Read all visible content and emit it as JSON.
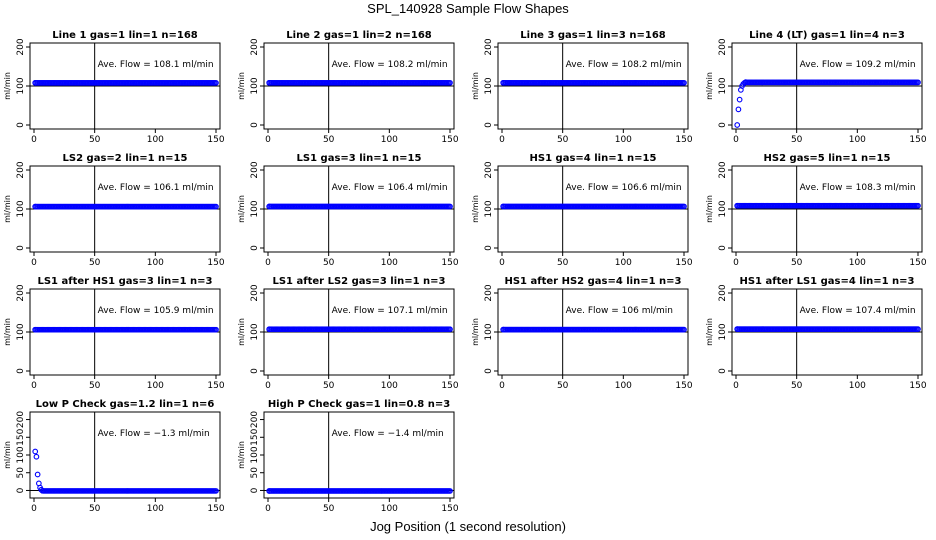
{
  "page": {
    "title": "SPL_140928  Sample Flow Shapes",
    "xlabel": "Jog Position (1 second resolution)"
  },
  "chart_data": [
    {
      "type": "scatter",
      "title": "Line 1 gas=1 lin=1 n=168",
      "ylabel": "ml/min",
      "annotation": "Ave. Flow = 108.1  ml/min",
      "xlim": [
        0,
        150
      ],
      "ylim": [
        0,
        200
      ],
      "xticks": [
        0,
        50,
        100,
        150
      ],
      "yticks": [
        0,
        100,
        200
      ],
      "vline": 50,
      "hline": 100,
      "series": [
        {
          "x": [
            1,
            150
          ],
          "y": [
            108.1,
            108.1
          ]
        }
      ],
      "marker_color": "#0000ff"
    },
    {
      "type": "scatter",
      "title": "Line 2 gas=1 lin=2 n=168",
      "ylabel": "ml/min",
      "annotation": "Ave. Flow = 108.2  ml/min",
      "xlim": [
        0,
        150
      ],
      "ylim": [
        0,
        200
      ],
      "xticks": [
        0,
        50,
        100,
        150
      ],
      "yticks": [
        0,
        100,
        200
      ],
      "vline": 50,
      "hline": 100,
      "series": [
        {
          "x": [
            1,
            150
          ],
          "y": [
            108.2,
            108.2
          ]
        }
      ],
      "marker_color": "#0000ff"
    },
    {
      "type": "scatter",
      "title": "Line 3 gas=1 lin=3 n=168",
      "ylabel": "ml/min",
      "annotation": "Ave. Flow = 108.2  ml/min",
      "xlim": [
        0,
        150
      ],
      "ylim": [
        0,
        200
      ],
      "xticks": [
        0,
        50,
        100,
        150
      ],
      "yticks": [
        0,
        100,
        200
      ],
      "vline": 50,
      "hline": 100,
      "series": [
        {
          "x": [
            1,
            150
          ],
          "y": [
            108.2,
            108.2
          ]
        }
      ],
      "marker_color": "#0000ff"
    },
    {
      "type": "scatter",
      "title": "Line 4 (LT) gas=1 lin=4 n=3",
      "ylabel": "ml/min",
      "annotation": "Ave. Flow = 109.2  ml/min",
      "xlim": [
        0,
        150
      ],
      "ylim": [
        0,
        200
      ],
      "xticks": [
        0,
        50,
        100,
        150
      ],
      "yticks": [
        0,
        100,
        200
      ],
      "vline": 50,
      "hline": 100,
      "series": [
        {
          "x": [
            1,
            2,
            3,
            4,
            5,
            6,
            7,
            8,
            150
          ],
          "y": [
            0,
            40,
            65,
            90,
            100,
            105,
            108,
            110,
            109.2
          ]
        }
      ],
      "marker_color": "#0000ff"
    },
    {
      "type": "scatter",
      "title": "LS2 gas=2 lin=1 n=15",
      "ylabel": "ml/min",
      "annotation": "Ave. Flow = 106.1  ml/min",
      "xlim": [
        0,
        150
      ],
      "ylim": [
        0,
        200
      ],
      "xticks": [
        0,
        50,
        100,
        150
      ],
      "yticks": [
        0,
        100,
        200
      ],
      "vline": 50,
      "hline": 100,
      "series": [
        {
          "x": [
            1,
            150
          ],
          "y": [
            106.1,
            106.1
          ]
        }
      ],
      "marker_color": "#0000ff"
    },
    {
      "type": "scatter",
      "title": "LS1 gas=3 lin=1 n=15",
      "ylabel": "ml/min",
      "annotation": "Ave. Flow = 106.4  ml/min",
      "xlim": [
        0,
        150
      ],
      "ylim": [
        0,
        200
      ],
      "xticks": [
        0,
        50,
        100,
        150
      ],
      "yticks": [
        0,
        100,
        200
      ],
      "vline": 50,
      "hline": 100,
      "series": [
        {
          "x": [
            1,
            150
          ],
          "y": [
            106.4,
            106.4
          ]
        }
      ],
      "marker_color": "#0000ff"
    },
    {
      "type": "scatter",
      "title": "HS1 gas=4 lin=1 n=15",
      "ylabel": "ml/min",
      "annotation": "Ave. Flow = 106.6  ml/min",
      "xlim": [
        0,
        150
      ],
      "ylim": [
        0,
        200
      ],
      "xticks": [
        0,
        50,
        100,
        150
      ],
      "yticks": [
        0,
        100,
        200
      ],
      "vline": 50,
      "hline": 100,
      "series": [
        {
          "x": [
            1,
            150
          ],
          "y": [
            106.6,
            106.6
          ]
        }
      ],
      "marker_color": "#0000ff"
    },
    {
      "type": "scatter",
      "title": "HS2 gas=5 lin=1 n=15",
      "ylabel": "ml/min",
      "annotation": "Ave. Flow = 108.3  ml/min",
      "xlim": [
        0,
        150
      ],
      "ylim": [
        0,
        200
      ],
      "xticks": [
        0,
        50,
        100,
        150
      ],
      "yticks": [
        0,
        100,
        200
      ],
      "vline": 50,
      "hline": 100,
      "series": [
        {
          "x": [
            1,
            150
          ],
          "y": [
            108.3,
            108.3
          ]
        }
      ],
      "marker_color": "#0000ff"
    },
    {
      "type": "scatter",
      "title": "LS1 after HS1 gas=3 lin=1 n=3",
      "ylabel": "ml/min",
      "annotation": "Ave. Flow = 105.9  ml/min",
      "xlim": [
        0,
        150
      ],
      "ylim": [
        0,
        200
      ],
      "xticks": [
        0,
        50,
        100,
        150
      ],
      "yticks": [
        0,
        100,
        200
      ],
      "vline": 50,
      "hline": 100,
      "series": [
        {
          "x": [
            1,
            150
          ],
          "y": [
            105.9,
            105.9
          ]
        }
      ],
      "marker_color": "#0000ff"
    },
    {
      "type": "scatter",
      "title": "LS1 after LS2 gas=3 lin=1 n=3",
      "ylabel": "ml/min",
      "annotation": "Ave. Flow = 107.1  ml/min",
      "xlim": [
        0,
        150
      ],
      "ylim": [
        0,
        200
      ],
      "xticks": [
        0,
        50,
        100,
        150
      ],
      "yticks": [
        0,
        100,
        200
      ],
      "vline": 50,
      "hline": 100,
      "series": [
        {
          "x": [
            1,
            150
          ],
          "y": [
            107.1,
            107.1
          ]
        }
      ],
      "marker_color": "#0000ff"
    },
    {
      "type": "scatter",
      "title": "HS1 after HS2 gas=4 lin=1 n=3",
      "ylabel": "ml/min",
      "annotation": "Ave. Flow = 106  ml/min",
      "xlim": [
        0,
        150
      ],
      "ylim": [
        0,
        200
      ],
      "xticks": [
        0,
        50,
        100,
        150
      ],
      "yticks": [
        0,
        100,
        200
      ],
      "vline": 50,
      "hline": 100,
      "series": [
        {
          "x": [
            1,
            150
          ],
          "y": [
            106,
            106
          ]
        }
      ],
      "marker_color": "#0000ff"
    },
    {
      "type": "scatter",
      "title": "HS1 after LS1 gas=4 lin=1 n=3",
      "ylabel": "ml/min",
      "annotation": "Ave. Flow = 107.4  ml/min",
      "xlim": [
        0,
        150
      ],
      "ylim": [
        0,
        200
      ],
      "xticks": [
        0,
        50,
        100,
        150
      ],
      "yticks": [
        0,
        100,
        200
      ],
      "vline": 50,
      "hline": 100,
      "series": [
        {
          "x": [
            1,
            150
          ],
          "y": [
            107.4,
            107.4
          ]
        }
      ],
      "marker_color": "#0000ff"
    },
    {
      "type": "scatter",
      "title": "Low P Check gas=1.2 lin=1 n=6",
      "ylabel": "ml/min",
      "annotation": "Ave. Flow = −1.3  ml/min",
      "xlim": [
        0,
        150
      ],
      "ylim": [
        -10,
        210
      ],
      "xticks": [
        0,
        50,
        100,
        150
      ],
      "yticks": [
        0,
        50,
        100,
        150,
        200
      ],
      "vline": 50,
      "hline": 0,
      "series": [
        {
          "x": [
            1,
            2,
            3,
            4,
            5,
            6,
            7,
            8,
            9,
            150
          ],
          "y": [
            110,
            95,
            45,
            20,
            8,
            2,
            -1,
            -1.3,
            -1.3,
            -1.3
          ]
        }
      ],
      "marker_color": "#0000ff"
    },
    {
      "type": "scatter",
      "title": "High P Check gas=1 lin=0.8 n=3",
      "ylabel": "ml/min",
      "annotation": "Ave. Flow = −1.4  ml/min",
      "xlim": [
        0,
        150
      ],
      "ylim": [
        -10,
        210
      ],
      "xticks": [
        0,
        50,
        100,
        150
      ],
      "yticks": [
        0,
        50,
        100,
        150,
        200
      ],
      "vline": 50,
      "hline": 0,
      "series": [
        {
          "x": [
            1,
            150
          ],
          "y": [
            -1.4,
            -1.4
          ]
        }
      ],
      "marker_color": "#0000ff"
    }
  ]
}
